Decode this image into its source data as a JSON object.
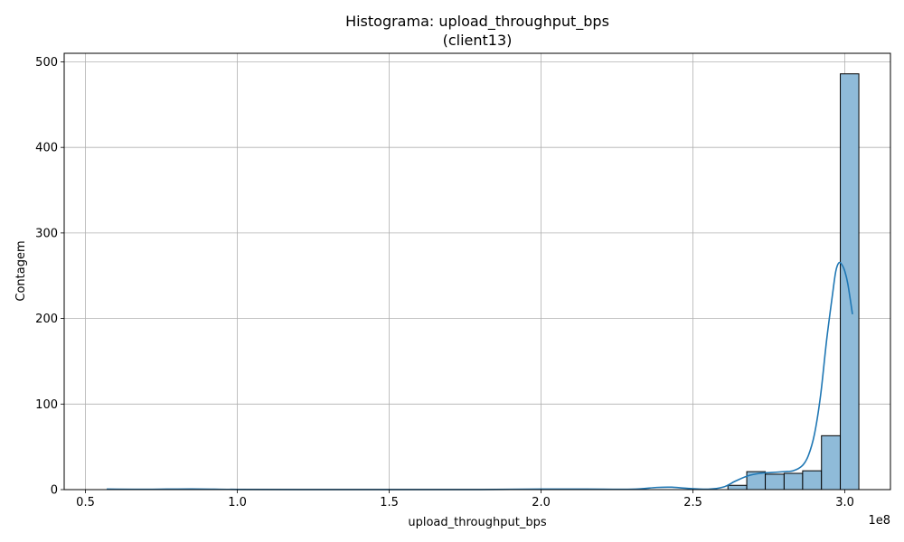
{
  "chart_data": {
    "type": "bar",
    "title": "Histograma: upload_throughput_bps",
    "subtitle": "(client13)",
    "xlabel": "upload_throughput_bps",
    "ylabel": "Contagem",
    "x_offset_label": "1e8",
    "xlim": [
      0.43,
      3.15
    ],
    "ylim": [
      0,
      510
    ],
    "xticks": [
      0.5,
      1.0,
      1.5,
      2.0,
      2.5,
      3.0
    ],
    "xtick_labels": [
      "0.5",
      "1.0",
      "1.5",
      "2.0",
      "2.5",
      "3.0"
    ],
    "yticks": [
      0,
      100,
      200,
      300,
      400,
      500
    ],
    "ytick_labels": [
      "0",
      "100",
      "200",
      "300",
      "400",
      "500"
    ],
    "grid": true,
    "bin_edges": [
      2.615,
      2.677,
      2.738,
      2.8,
      2.861,
      2.923,
      2.985,
      3.046
    ],
    "values": [
      5,
      21,
      18,
      19,
      22,
      63,
      486
    ],
    "kde": {
      "x": [
        0.57,
        0.7,
        0.85,
        1.0,
        1.2,
        1.5,
        1.8,
        2.0,
        2.15,
        2.3,
        2.38,
        2.43,
        2.48,
        2.55,
        2.6,
        2.64,
        2.68,
        2.72,
        2.76,
        2.8,
        2.83,
        2.86,
        2.88,
        2.9,
        2.92,
        2.94,
        2.96,
        2.97,
        2.98,
        2.99,
        3.0,
        3.01,
        3.025
      ],
      "y": [
        0.6,
        0.3,
        0.8,
        0.2,
        0.1,
        0.1,
        0.1,
        0.6,
        0.6,
        0.5,
        2.5,
        2.8,
        1.5,
        0.5,
        3,
        10,
        16,
        19,
        20,
        21,
        22,
        28,
        40,
        65,
        110,
        175,
        230,
        255,
        265,
        263,
        255,
        240,
        205
      ]
    },
    "colors": {
      "bar": "#8fbbd9",
      "bar_edge": "#000000",
      "kde": "#1f77b4",
      "grid": "#b0b0b0"
    }
  }
}
